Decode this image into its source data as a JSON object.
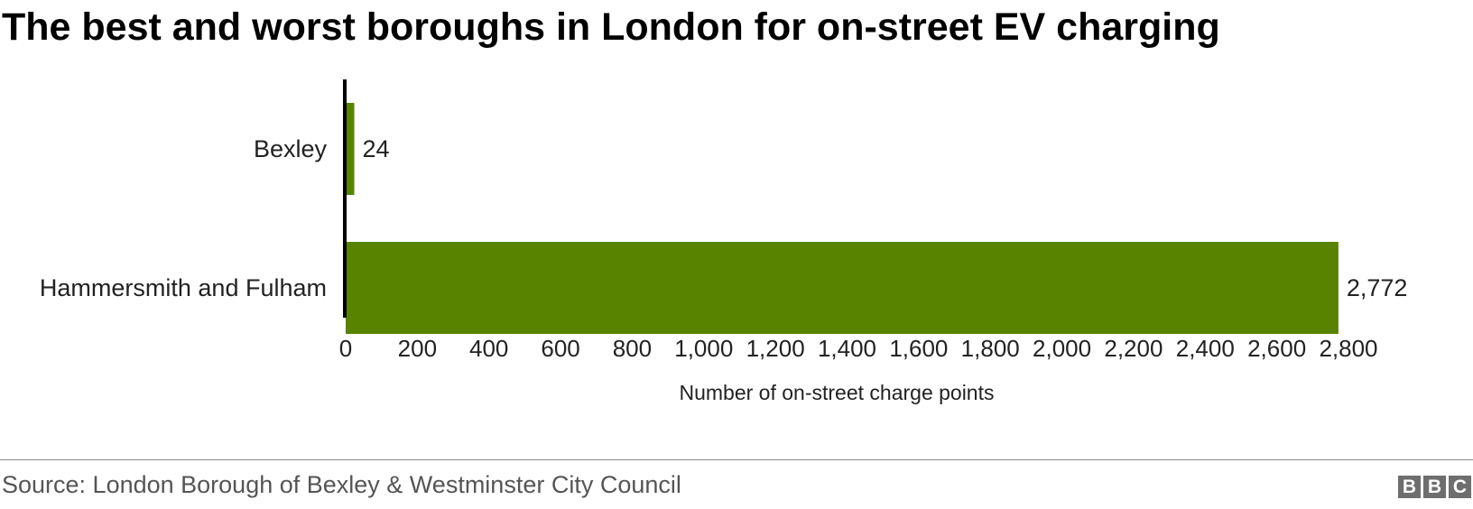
{
  "title": "The best and worst boroughs in London for on-street EV charging",
  "source": "Source: London Borough of Bexley & Westminster City Council",
  "logo": {
    "letters": [
      "B",
      "B",
      "C"
    ],
    "color": "#6e6e6e"
  },
  "chart_data": {
    "type": "bar",
    "orientation": "horizontal",
    "categories": [
      "Bexley",
      "Hammersmith and Fulham"
    ],
    "values": [
      24,
      2772
    ],
    "value_labels": [
      "24",
      "2,772"
    ],
    "xlabel": "Number of on-street charge points",
    "ylabel": "",
    "xlim": [
      0,
      2800
    ],
    "ticks": [
      0,
      200,
      400,
      600,
      800,
      1000,
      1200,
      1400,
      1600,
      1800,
      2000,
      2200,
      2400,
      2600,
      2800
    ],
    "tick_labels": [
      "0",
      "200",
      "400",
      "600",
      "800",
      "1,000",
      "1,200",
      "1,400",
      "1,600",
      "1,800",
      "2,000",
      "2,200",
      "2,400",
      "2,600",
      "2,800"
    ],
    "bar_color": "#588300",
    "grid": false,
    "legend": "none"
  }
}
